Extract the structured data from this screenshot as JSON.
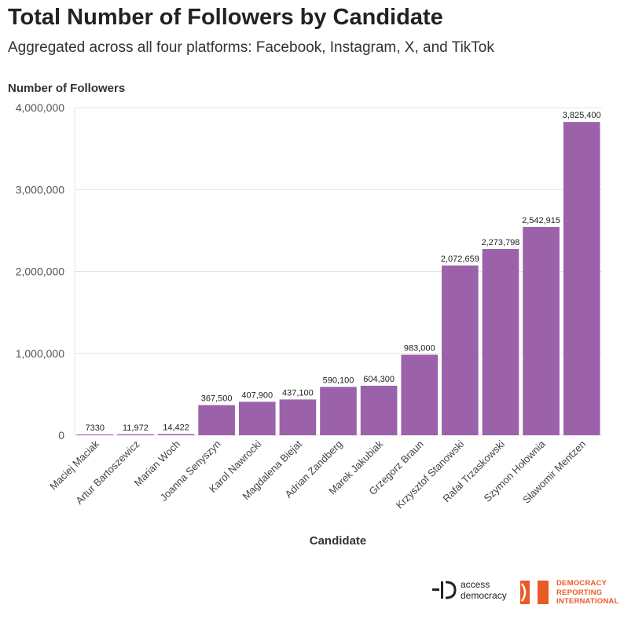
{
  "header": {
    "title": "Total Number of Followers by Candidate",
    "subtitle": "Aggregated across all four platforms: Facebook, Instagram, X, and TikTok"
  },
  "chart_data": {
    "type": "bar",
    "title": "Total Number of Followers by Candidate",
    "subtitle": "Aggregated across all four platforms: Facebook, Instagram, X, and TikTok",
    "xlabel": "Candidate",
    "ylabel": "Number of Followers",
    "ylim": [
      0,
      4000000
    ],
    "yticks": [
      0,
      1000000,
      2000000,
      3000000,
      4000000
    ],
    "ytick_labels": [
      "0",
      "1,000,000",
      "2,000,000",
      "3,000,000",
      "4,000,000"
    ],
    "grid": true,
    "bar_color": "#9b62aa",
    "categories": [
      "Maciej Maciak",
      "Artur Bartoszewicz",
      "Marian Woch",
      "Joanna Senyszyn",
      "Karol Nawrocki",
      "Magdalena Biejat",
      "Adrian Zandberg",
      "Marek Jakubiak",
      "Grzegorz Braun",
      "Krzysztof Stanowski",
      "Rafał Trzaskowski",
      "Szymon Hołownia",
      "Sławomir Mentzen"
    ],
    "values": [
      7330,
      11972,
      14422,
      367500,
      407900,
      437100,
      590100,
      604300,
      983000,
      2072659,
      2273798,
      2542915,
      3825400
    ],
    "value_labels": [
      "7330",
      "11,972",
      "14,422",
      "367,500",
      "407,900",
      "437,100",
      "590,100",
      "604,300",
      "983,000",
      "2,072,659",
      "2,273,798",
      "2,542,915",
      "3,825,400"
    ]
  },
  "logos": {
    "access_democracy": {
      "line1": "access",
      "line2": "democracy"
    },
    "dri": {
      "line1": "DEMOCRACY",
      "line2": "REPORTING",
      "line3": "INTERNATIONAL",
      "color": "#ea5a24"
    }
  }
}
